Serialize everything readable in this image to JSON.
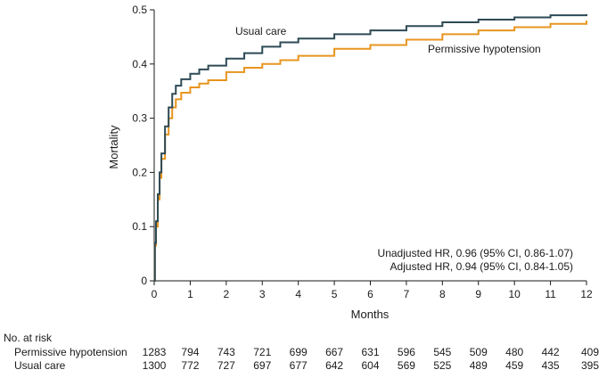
{
  "chart_data": {
    "type": "line",
    "title": "",
    "xlabel": "Months",
    "ylabel": "Mortality",
    "xlim": [
      0,
      12
    ],
    "ylim": [
      0,
      0.5
    ],
    "x_ticks": [
      0,
      1,
      2,
      3,
      4,
      5,
      6,
      7,
      8,
      9,
      10,
      11,
      12
    ],
    "y_ticks": [
      0,
      0.1,
      0.2,
      0.3,
      0.4,
      0.5
    ],
    "x_tick_labels": [
      "0",
      "1",
      "2",
      "3",
      "4",
      "5",
      "6",
      "7",
      "8",
      "9",
      "10",
      "11",
      "12"
    ],
    "y_tick_labels": [
      "0",
      "0.1",
      "0.2",
      "0.3",
      "0.4",
      "0.5"
    ],
    "grid": false,
    "series": [
      {
        "name": "Usual care",
        "color": "#2e4a55",
        "x": [
          0,
          0.02,
          0.05,
          0.1,
          0.15,
          0.2,
          0.3,
          0.4,
          0.5,
          0.6,
          0.75,
          1,
          1.25,
          1.5,
          2,
          2.5,
          3,
          3.5,
          4,
          5,
          6,
          7,
          8,
          9,
          10,
          11,
          12
        ],
        "y": [
          0,
          0.07,
          0.11,
          0.16,
          0.2,
          0.235,
          0.285,
          0.32,
          0.345,
          0.36,
          0.372,
          0.382,
          0.39,
          0.397,
          0.41,
          0.42,
          0.432,
          0.44,
          0.447,
          0.455,
          0.462,
          0.47,
          0.477,
          0.482,
          0.486,
          0.49,
          0.492
        ]
      },
      {
        "name": "Permissive hypotension",
        "color": "#e8951e",
        "x": [
          0,
          0.02,
          0.05,
          0.1,
          0.15,
          0.2,
          0.3,
          0.4,
          0.5,
          0.6,
          0.75,
          1,
          1.25,
          1.5,
          2,
          2.5,
          3,
          3.5,
          4,
          5,
          6,
          7,
          8,
          9,
          10,
          11,
          12
        ],
        "y": [
          0,
          0.065,
          0.1,
          0.15,
          0.19,
          0.225,
          0.27,
          0.3,
          0.32,
          0.335,
          0.347,
          0.357,
          0.364,
          0.37,
          0.385,
          0.393,
          0.4,
          0.407,
          0.415,
          0.428,
          0.435,
          0.445,
          0.455,
          0.462,
          0.468,
          0.474,
          0.48
        ]
      }
    ],
    "annotations": [
      "Unadjusted HR, 0.96 (95% CI, 0.86-1.07)",
      "Adjusted HR, 0.94 (95% CI, 0.84-1.05)"
    ],
    "risk_table": {
      "header": "No. at risk",
      "rows": [
        {
          "label": "Permissive hypotension",
          "values": [
            1283,
            794,
            743,
            721,
            699,
            667,
            631,
            596,
            545,
            509,
            480,
            442,
            409
          ]
        },
        {
          "label": "Usual care",
          "values": [
            1300,
            772,
            727,
            697,
            677,
            642,
            604,
            569,
            525,
            489,
            459,
            435,
            395
          ]
        }
      ]
    }
  }
}
